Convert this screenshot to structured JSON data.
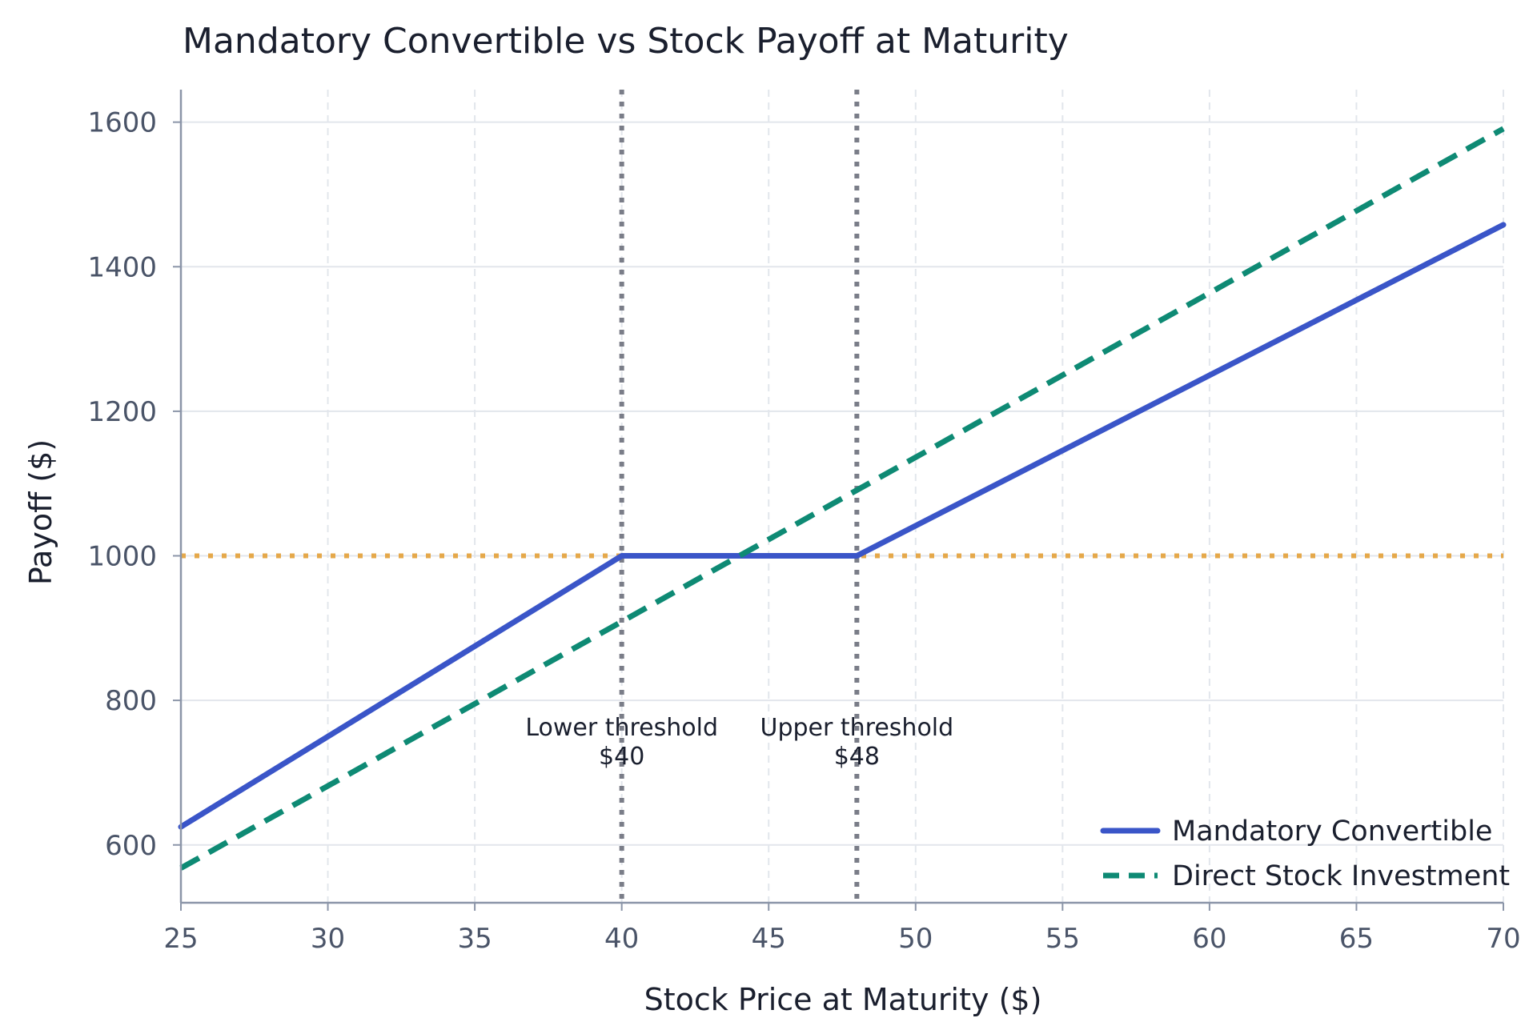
{
  "chart_data": {
    "type": "line",
    "title": "Mandatory Convertible vs Stock Payoff at Maturity",
    "xlabel": "Stock Price at Maturity ($)",
    "ylabel": "Payoff ($)",
    "xlim": [
      25,
      70
    ],
    "ylim": [
      520,
      1645
    ],
    "xticks": [
      25,
      30,
      35,
      40,
      45,
      50,
      55,
      60,
      65,
      70
    ],
    "yticks": [
      600,
      800,
      1000,
      1200,
      1400,
      1600
    ],
    "grid": true,
    "legend_position": "bottom-right",
    "series": [
      {
        "name": "Mandatory Convertible",
        "style": "solid",
        "color": "#3a55c8",
        "x": [
          25,
          40,
          48,
          70
        ],
        "y": [
          625,
          1000,
          1000,
          1458
        ]
      },
      {
        "name": "Direct Stock Investment",
        "style": "dashed",
        "color": "#0e8a74",
        "x": [
          25,
          70
        ],
        "y": [
          568,
          1591
        ]
      }
    ],
    "reference_lines": [
      {
        "orientation": "horizontal",
        "value": 1000,
        "style": "dotted",
        "color": "#e5a84a"
      },
      {
        "orientation": "vertical",
        "value": 40,
        "style": "dotted",
        "color": "#7a7d88"
      },
      {
        "orientation": "vertical",
        "value": 48,
        "style": "dotted",
        "color": "#7a7d88"
      }
    ],
    "annotations": [
      {
        "x": 40,
        "y": 745,
        "lines": [
          "Lower threshold",
          "$40"
        ]
      },
      {
        "x": 48,
        "y": 745,
        "lines": [
          "Upper threshold",
          "$48"
        ]
      }
    ]
  }
}
